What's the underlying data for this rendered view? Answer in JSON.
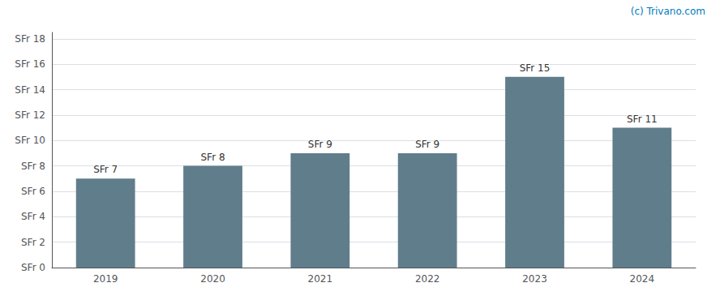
{
  "chart_data": {
    "type": "bar",
    "categories": [
      "2019",
      "2020",
      "2021",
      "2022",
      "2023",
      "2024"
    ],
    "values": [
      7,
      8,
      9,
      9,
      15,
      11
    ],
    "value_labels": [
      "SFr 7",
      "SFr 8",
      "SFr 9",
      "SFr 9",
      "SFr 15",
      "SFr 11"
    ],
    "data_labels": true,
    "color": "#607d8b",
    "ylim": [
      0,
      18.5
    ],
    "yticks": [
      {
        "value": 0,
        "label": "SFr 0"
      },
      {
        "value": 2,
        "label": "SFr 2"
      },
      {
        "value": 4,
        "label": "SFr 4"
      },
      {
        "value": 6,
        "label": "SFr 6"
      },
      {
        "value": 8,
        "label": "SFr 8"
      },
      {
        "value": 10,
        "label": "SFr 10"
      },
      {
        "value": 12,
        "label": "SFr 12"
      },
      {
        "value": 14,
        "label": "SFr 14"
      },
      {
        "value": 16,
        "label": "SFr 16"
      },
      {
        "value": 18,
        "label": "SFr 18"
      }
    ],
    "grid": true,
    "annotations": [
      {
        "text": "(c) Trivano.com",
        "color": "#007bbd"
      }
    ]
  }
}
